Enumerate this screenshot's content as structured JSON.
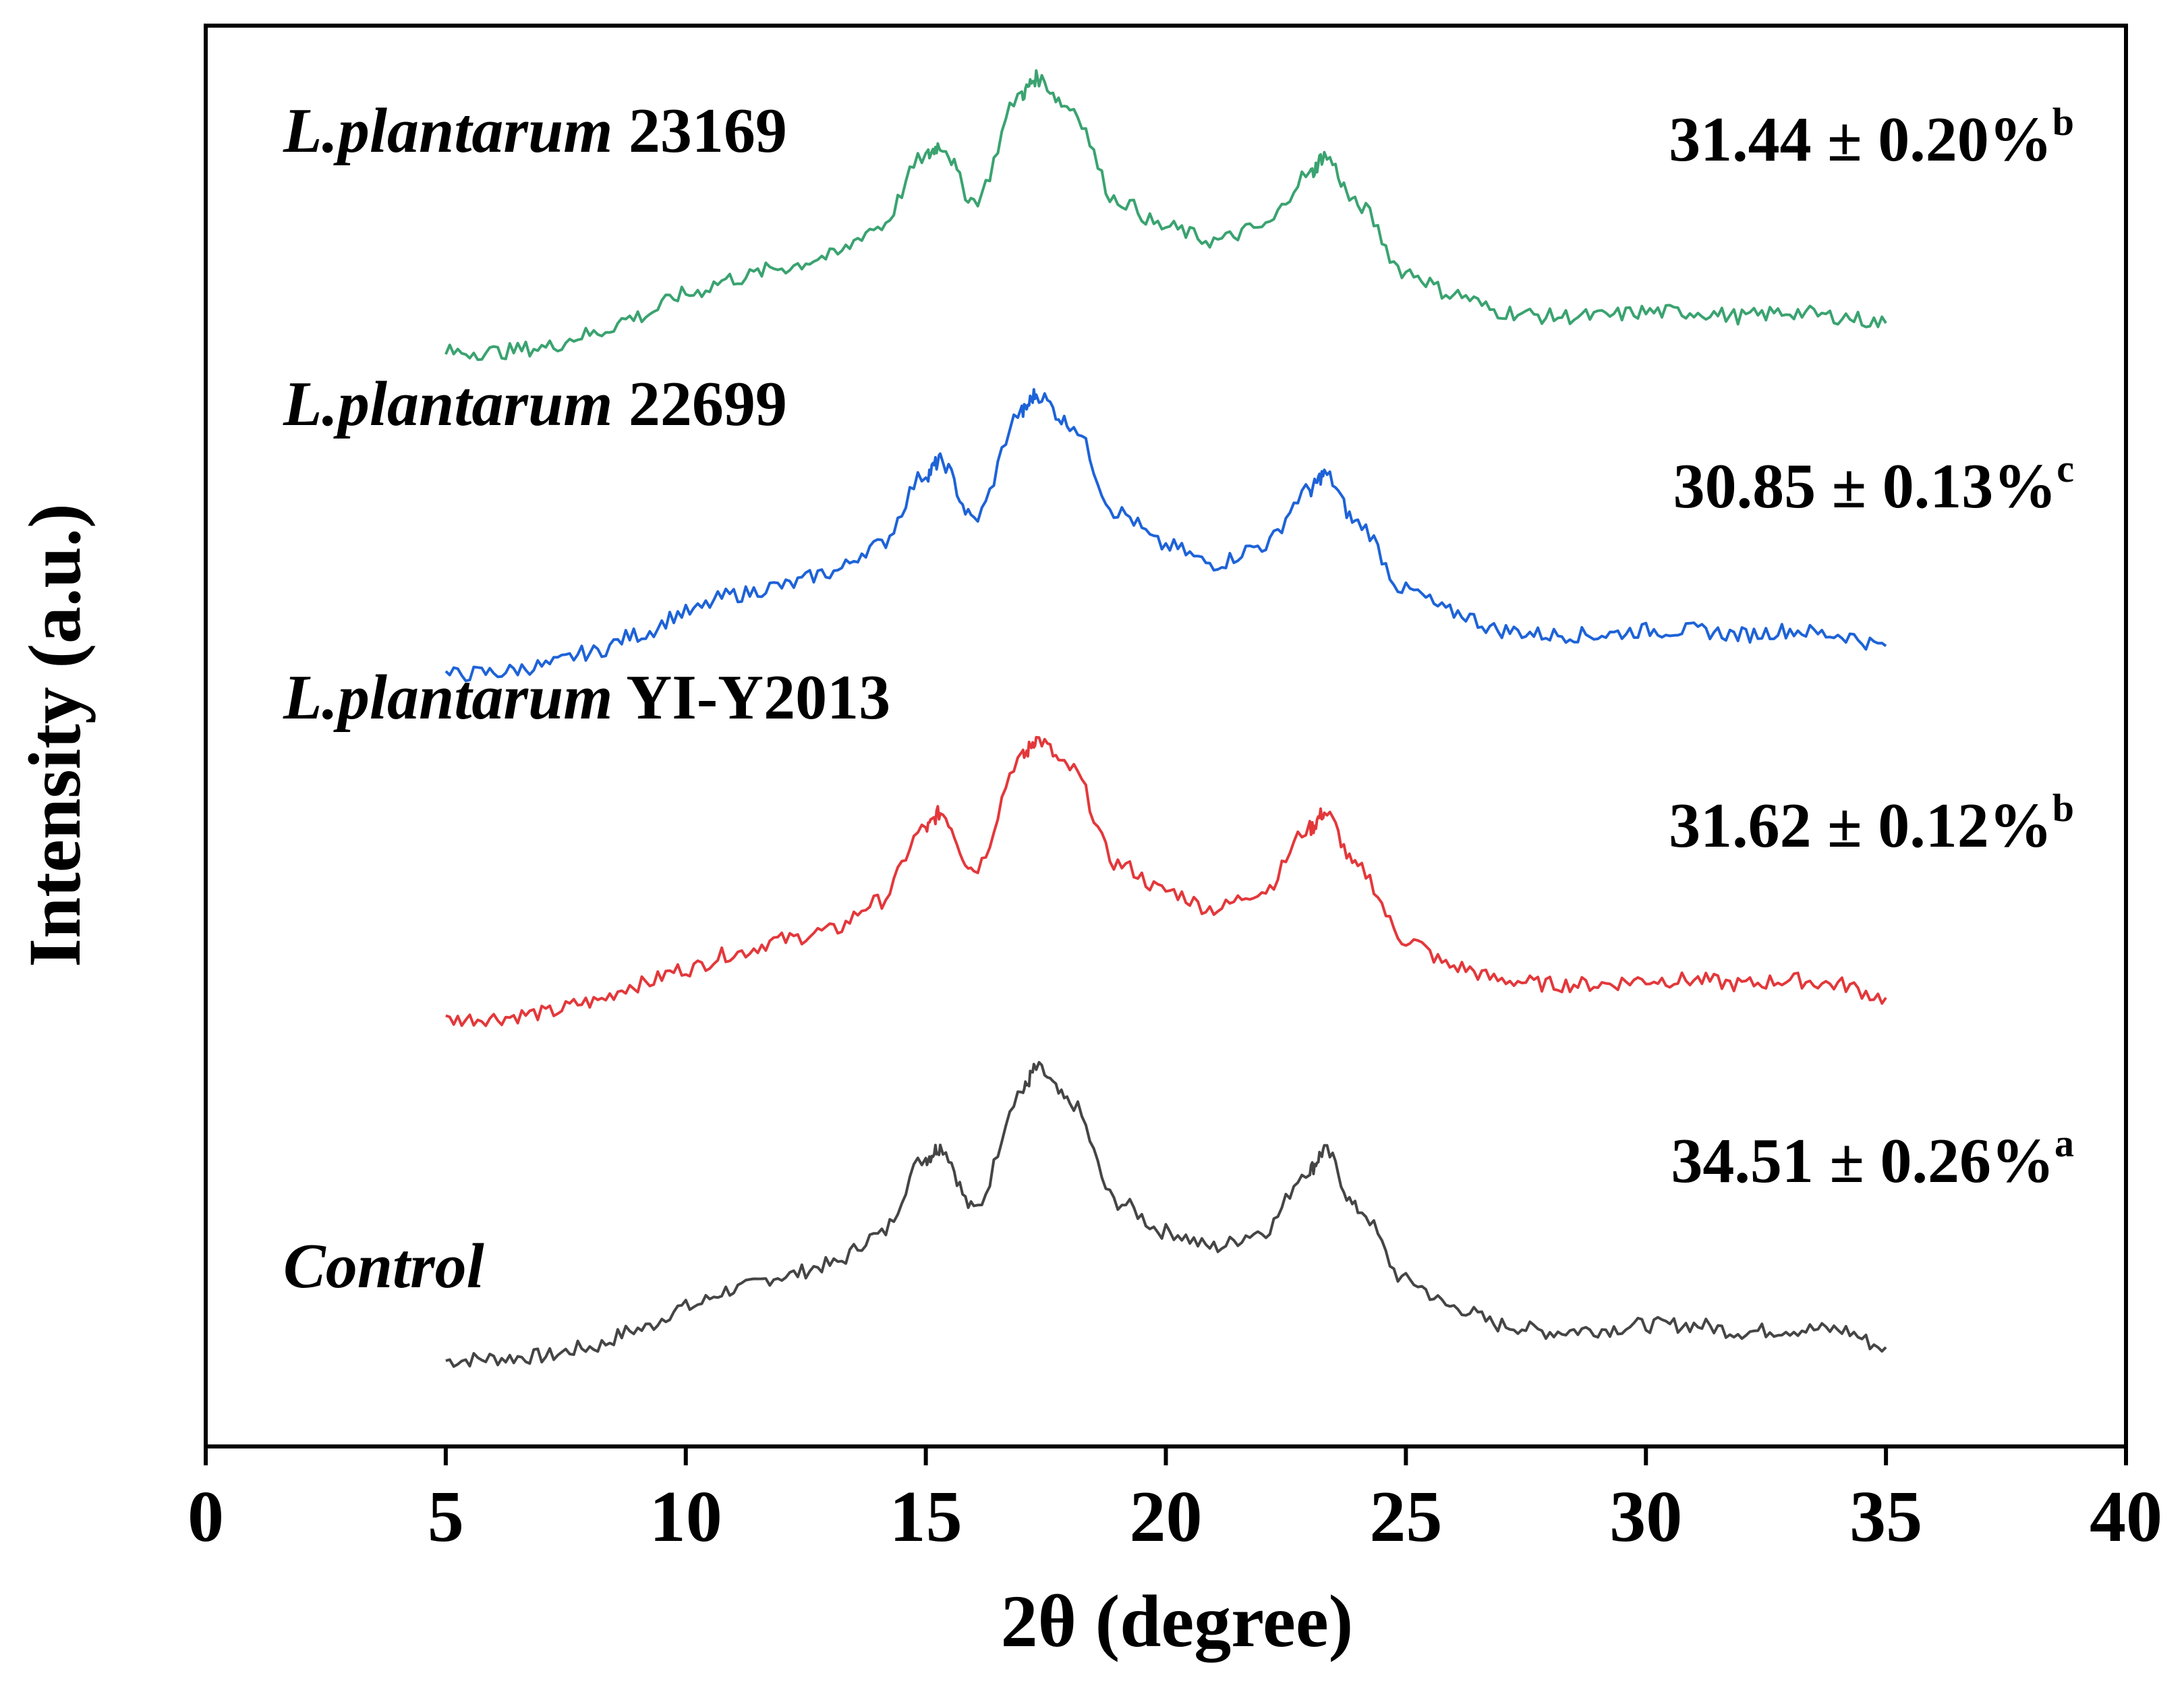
{
  "chart_data": {
    "type": "line",
    "title": "",
    "xlabel": "2θ (degree)",
    "ylabel": "Intensity (a.u.)",
    "xlim": [
      0,
      40
    ],
    "x_ticks": [
      "0",
      "5",
      "10",
      "15",
      "20",
      "25",
      "30",
      "35",
      "40"
    ],
    "y_ticks": [],
    "grid": false,
    "x": [
      5,
      6,
      7,
      8,
      9,
      10,
      11,
      12,
      13,
      14,
      15,
      15.3,
      16,
      17,
      17.3,
      18,
      19,
      20,
      21,
      22,
      23,
      23.3,
      24,
      25,
      26,
      27,
      28,
      29,
      30,
      31,
      32,
      33,
      34,
      35
    ],
    "series": [
      {
        "name": "Control",
        "label_italic": "Control",
        "label_rest": "",
        "color": "#454545",
        "offset": 0,
        "crystallinity": "34.51 ± 0.26%",
        "superscript": "a",
        "values": [
          0.04,
          0.05,
          0.06,
          0.1,
          0.18,
          0.28,
          0.36,
          0.42,
          0.47,
          0.6,
          0.95,
          1.0,
          0.72,
          1.25,
          1.35,
          1.2,
          0.75,
          0.62,
          0.55,
          0.62,
          0.9,
          0.98,
          0.72,
          0.4,
          0.28,
          0.2,
          0.17,
          0.18,
          0.2,
          0.2,
          0.17,
          0.18,
          0.18,
          0.1
        ]
      },
      {
        "name": "L.plantarum YI-Y2013",
        "label_italic": "L.plantarum",
        "label_rest": " YI-Y2013",
        "color": "#e3383b",
        "offset": 1.55,
        "crystallinity": "31.62 ± 0.12%",
        "superscript": "b",
        "values": [
          0.02,
          0.03,
          0.05,
          0.1,
          0.18,
          0.25,
          0.32,
          0.38,
          0.42,
          0.55,
          0.88,
          0.95,
          0.7,
          1.2,
          1.28,
          1.15,
          0.72,
          0.6,
          0.52,
          0.6,
          0.88,
          0.95,
          0.7,
          0.38,
          0.26,
          0.2,
          0.18,
          0.18,
          0.2,
          0.2,
          0.18,
          0.2,
          0.18,
          0.12
        ]
      },
      {
        "name": "L.plantarum 22699",
        "label_italic": "L.plantarum",
        "label_rest": " 22699",
        "color": "#1e63d8",
        "offset": 3.1,
        "crystallinity": "30.85 ± 0.13%",
        "superscript": "c",
        "values": [
          0.02,
          0.03,
          0.06,
          0.12,
          0.2,
          0.3,
          0.38,
          0.42,
          0.48,
          0.6,
          0.92,
          0.98,
          0.72,
          1.2,
          1.28,
          1.15,
          0.75,
          0.6,
          0.52,
          0.6,
          0.85,
          0.92,
          0.7,
          0.4,
          0.3,
          0.22,
          0.2,
          0.2,
          0.22,
          0.22,
          0.2,
          0.22,
          0.2,
          0.15
        ]
      },
      {
        "name": "L.plantarum 23169",
        "label_italic": "L.plantarum",
        "label_rest": " 23169",
        "color": "#3aa370",
        "offset": 4.55,
        "crystallinity": "31.44 ± 0.20%",
        "superscript": "b",
        "values": [
          0.02,
          0.02,
          0.04,
          0.1,
          0.18,
          0.28,
          0.35,
          0.4,
          0.45,
          0.58,
          0.9,
          0.95,
          0.7,
          1.18,
          1.25,
          1.12,
          0.7,
          0.58,
          0.52,
          0.58,
          0.82,
          0.9,
          0.68,
          0.38,
          0.28,
          0.2,
          0.18,
          0.18,
          0.2,
          0.2,
          0.18,
          0.2,
          0.18,
          0.15
        ]
      }
    ]
  }
}
